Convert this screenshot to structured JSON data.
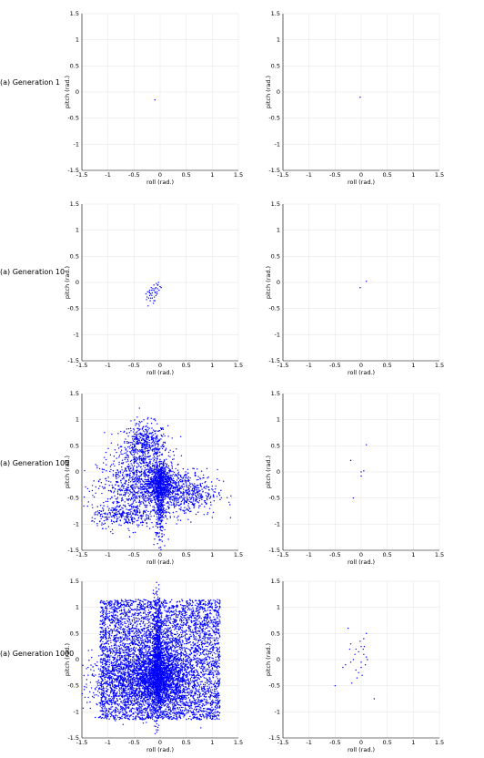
{
  "row_labels": [
    "(a) Generation 1",
    "(a) Generation 10",
    "(a) Generation 100",
    "(a) Generation 1000"
  ],
  "chart_data": [
    {
      "type": "scatter",
      "row": 0,
      "col": 0,
      "xlabel": "roll (rad.)",
      "ylabel": "pitch (rad.)",
      "xlim": [
        -1.5,
        1.5
      ],
      "ylim": [
        -1.5,
        1.5
      ],
      "grid": true,
      "color": "#0000ff",
      "x": [
        -0.1
      ],
      "y": [
        -0.15
      ]
    },
    {
      "type": "scatter",
      "row": 0,
      "col": 1,
      "xlabel": "roll (rad.)",
      "ylabel": "pitch (rad.)",
      "xlim": [
        -1.5,
        1.5
      ],
      "ylim": [
        -1.5,
        1.5
      ],
      "grid": true,
      "color": "#0000ff",
      "x": [
        -0.02
      ],
      "y": [
        -0.1
      ]
    },
    {
      "type": "scatter",
      "row": 1,
      "col": 0,
      "xlabel": "roll (rad.)",
      "ylabel": "pitch (rad.)",
      "xlim": [
        -1.5,
        1.5
      ],
      "ylim": [
        -1.5,
        1.5
      ],
      "grid": true,
      "color": "#0000ff",
      "x": [
        -0.05,
        -0.08,
        -0.1,
        -0.12,
        -0.15,
        -0.18,
        -0.2,
        -0.22,
        -0.25,
        -0.1,
        -0.05,
        0.0,
        -0.03,
        -0.07,
        -0.12,
        -0.17,
        -0.2,
        -0.24,
        -0.27,
        -0.15,
        -0.1,
        -0.06,
        -0.02,
        0.02,
        -0.13,
        -0.19,
        -0.23,
        -0.09,
        -0.16,
        -0.21,
        -0.11,
        -0.04,
        -0.26,
        -0.14,
        -0.08,
        -0.18,
        -0.12,
        -0.06,
        -0.2,
        -0.16
      ],
      "y": [
        -0.05,
        -0.1,
        -0.12,
        -0.15,
        -0.2,
        -0.22,
        -0.25,
        -0.3,
        -0.28,
        -0.18,
        -0.12,
        -0.08,
        0.0,
        -0.02,
        -0.05,
        -0.1,
        -0.15,
        -0.18,
        -0.22,
        -0.3,
        -0.35,
        -0.22,
        -0.15,
        -0.1,
        -0.4,
        -0.35,
        -0.45,
        -0.2,
        -0.25,
        -0.18,
        -0.28,
        -0.05,
        -0.33,
        -0.12,
        -0.25,
        -0.3,
        -0.35,
        -0.18,
        -0.2,
        -0.15
      ]
    },
    {
      "type": "scatter",
      "row": 1,
      "col": 1,
      "xlabel": "roll (rad.)",
      "ylabel": "pitch (rad.)",
      "xlim": [
        -1.5,
        1.5
      ],
      "ylim": [
        -1.5,
        1.5
      ],
      "grid": true,
      "color": "#0000ff",
      "x": [
        -0.02,
        0.1
      ],
      "y": [
        -0.1,
        0.02
      ]
    },
    {
      "type": "scatter",
      "row": 2,
      "col": 0,
      "xlabel": "roll (rad.)",
      "ylabel": "pitch (rad.)",
      "xlim": [
        -1.5,
        1.5
      ],
      "ylim": [
        -1.5,
        1.5
      ],
      "grid": true,
      "color": "#0000ff",
      "density_clusters": [
        {
          "cx": -0.3,
          "cy": 0.5,
          "sx": 0.22,
          "sy": 0.22,
          "n": 550
        },
        {
          "cx": -0.4,
          "cy": -0.3,
          "sx": 0.4,
          "sy": 0.3,
          "n": 900
        },
        {
          "cx": 0.5,
          "cy": -0.4,
          "sx": 0.3,
          "sy": 0.22,
          "n": 500
        },
        {
          "cx": 0.0,
          "cy": -0.2,
          "sx": 0.12,
          "sy": 0.18,
          "n": 700
        },
        {
          "cx": -0.7,
          "cy": -0.85,
          "sx": 0.3,
          "sy": 0.1,
          "n": 250
        },
        {
          "cx": 0.0,
          "cy": -0.6,
          "sx": 0.05,
          "sy": 0.4,
          "n": 300
        }
      ]
    },
    {
      "type": "scatter",
      "row": 2,
      "col": 1,
      "xlabel": "roll (rad.)",
      "ylabel": "pitch (rad.)",
      "xlim": [
        -1.5,
        1.5
      ],
      "ylim": [
        -1.5,
        1.5
      ],
      "grid": true,
      "color": "#0000ff",
      "x": [
        -0.2,
        0.1,
        0.05,
        0.0,
        -0.15,
        0.0
      ],
      "y": [
        0.22,
        0.52,
        0.02,
        0.0,
        -0.5,
        -0.08
      ]
    },
    {
      "type": "scatter",
      "row": 3,
      "col": 0,
      "xlabel": "roll (rad.)",
      "ylabel": "pitch (rad.)",
      "xlim": [
        -1.5,
        1.5
      ],
      "ylim": [
        -1.5,
        1.5
      ],
      "grid": true,
      "color": "#0000ff",
      "density_clusters": [
        {
          "uniform": true,
          "xr": [
            -1.15,
            1.15
          ],
          "yr": [
            -1.15,
            1.15
          ],
          "n": 5200
        },
        {
          "cx": 0.0,
          "cy": -0.3,
          "sx": 0.25,
          "sy": 0.3,
          "n": 1500
        },
        {
          "cx": -0.05,
          "cy": 0.0,
          "sx": 0.04,
          "sy": 0.6,
          "n": 700
        },
        {
          "cx": -0.5,
          "cy": -0.4,
          "sx": 0.5,
          "sy": 0.3,
          "n": 900
        }
      ]
    },
    {
      "type": "scatter",
      "row": 3,
      "col": 1,
      "xlabel": "roll (rad.)",
      "ylabel": "pitch (rad.)",
      "xlim": [
        -1.5,
        1.5
      ],
      "ylim": [
        -1.5,
        1.5
      ],
      "grid": true,
      "color": "#0000ff",
      "x": [
        -0.25,
        0.1,
        0.05,
        -0.2,
        -0.1,
        0.0,
        0.05,
        -0.05,
        0.1,
        -0.15,
        -0.2,
        -0.3,
        0.0,
        -0.1,
        -0.05,
        0.02,
        0.08,
        -0.12,
        -0.02,
        0.04,
        -0.5,
        0.25,
        -0.35,
        -0.18,
        0.06,
        -0.08,
        0.0,
        0.12,
        -0.22
      ],
      "y": [
        0.6,
        0.5,
        0.4,
        0.3,
        0.2,
        0.25,
        0.1,
        0.15,
        0.05,
        0.0,
        -0.05,
        -0.1,
        -0.15,
        -0.2,
        -0.25,
        -0.3,
        -0.1,
        0.1,
        0.35,
        0.2,
        -0.5,
        -0.75,
        -0.15,
        -0.45,
        0.25,
        -0.35,
        -0.05,
        0.0,
        0.2
      ]
    }
  ]
}
